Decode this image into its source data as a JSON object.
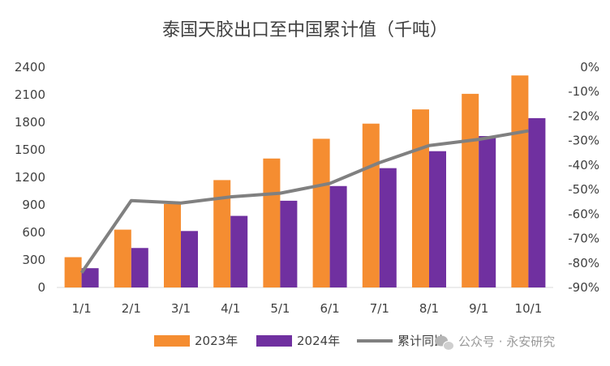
{
  "chart_data": {
    "type": "bar",
    "title": "泰国天胶出口至中国累计值（千吨）",
    "categories": [
      "1/1",
      "2/1",
      "3/1",
      "4/1",
      "5/1",
      "6/1",
      "7/1",
      "8/1",
      "9/1",
      "10/1"
    ],
    "series": [
      {
        "name": "2023年",
        "type": "bar",
        "axis": "left",
        "color": "#f58d31",
        "values": [
          330,
          630,
          910,
          1170,
          1405,
          1620,
          1785,
          1940,
          2110,
          2310
        ]
      },
      {
        "name": "2024年",
        "type": "bar",
        "axis": "left",
        "color": "#7030a0",
        "values": [
          210,
          430,
          615,
          780,
          945,
          1105,
          1300,
          1485,
          1650,
          1845
        ]
      },
      {
        "name": "累计同比",
        "type": "line",
        "axis": "right",
        "color": "#808080",
        "values": [
          -84,
          -54.5,
          -55.5,
          -53,
          -51.5,
          -47.5,
          -39,
          -32,
          -29.5,
          -26
        ]
      }
    ],
    "y_left": {
      "min": 0,
      "max": 2400,
      "ticks": [
        "0",
        "300",
        "600",
        "900",
        "1200",
        "1500",
        "1800",
        "2100",
        "2400"
      ]
    },
    "y_right": {
      "min": -90,
      "max": 0,
      "ticks": [
        "-90%",
        "-80%",
        "-70%",
        "-60%",
        "-50%",
        "-40%",
        "-30%",
        "-20%",
        "-10%",
        "0%"
      ]
    },
    "grid": false,
    "legend_position": "bottom"
  },
  "watermark": {
    "icon": "wechat-icon",
    "text": "公众号 · 永安研究"
  }
}
